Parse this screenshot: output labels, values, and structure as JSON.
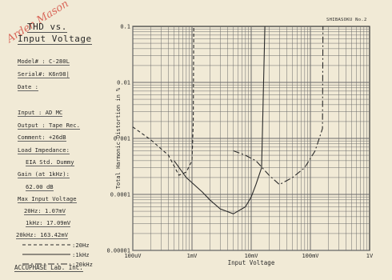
{
  "watermark": "Arden Mason",
  "brand_top_right": "SHIBASOKU No.2",
  "panel": {
    "title_line1": "THD vs.",
    "title_line2": "Input Voltage",
    "model": "Model# : C-280L",
    "serial": "Serial#: K6n98|",
    "date": "Date   :",
    "input": "Input  : AD MC",
    "output": "Output : Tape Rec.",
    "comment": "Comment: +26dB",
    "load_impedance_label": "Load Impedance:",
    "load_impedance_value": "EIA Std. Dummy",
    "gain_label": "Gain (at 1kHz):",
    "gain_value": "62.00  dB",
    "max_input_label": "Max Input Voltage",
    "max_20hz": "20Hz:  1.07mV",
    "max_1khz": "1kHz: 17.09mV",
    "max_20khz": "20kHz: 163.42mV",
    "legend_20hz": ":20Hz",
    "legend_1khz": ":1kHz",
    "legend_20khz": ":20kHz",
    "footer": "ACCUPHASE Lab. Inc."
  },
  "colors": {
    "paper": "#f1ead6",
    "grid": "#6b6b6b",
    "curve": "#2a2a2a",
    "watermark": "#d13a2f"
  },
  "chart_data": {
    "type": "line",
    "title": "",
    "xlabel": "Input Voltage",
    "ylabel": "Total Harmonic Distortion in %",
    "xscale": "log",
    "yscale": "log",
    "xlim": [
      0.0001,
      1
    ],
    "ylim": [
      1e-05,
      0.1
    ],
    "x_ticks": [
      0.0001,
      0.001,
      0.01,
      0.1,
      1
    ],
    "x_tick_labels": [
      "100uV",
      "1mV",
      "10mV",
      "100mV",
      "1V"
    ],
    "y_ticks": [
      1e-05,
      0.0001,
      0.001,
      0.01,
      0.1
    ],
    "y_tick_labels": [
      "0.00001",
      "0.0001",
      "0.001",
      "0.01",
      "0.1"
    ],
    "grid": true,
    "series": [
      {
        "name": "20Hz",
        "dash": "dashed",
        "x": [
          0.0001,
          0.0002,
          0.0004,
          0.0006,
          0.0008,
          0.001,
          0.00105,
          0.00107
        ],
        "y": [
          0.0016,
          0.00095,
          0.0005,
          0.00022,
          0.00025,
          0.0004,
          0.002,
          0.1
        ]
      },
      {
        "name": "1kHz",
        "dash": "solid",
        "x": [
          0.0005,
          0.0008,
          0.0015,
          0.002,
          0.003,
          0.005,
          0.008,
          0.01,
          0.012,
          0.015,
          0.017
        ],
        "y": [
          0.0004,
          0.0002,
          0.00011,
          8e-05,
          5.5e-05,
          4.5e-05,
          6e-05,
          9e-05,
          0.00015,
          0.0003,
          0.1
        ]
      },
      {
        "name": "20kHz",
        "dash": "dash-dot",
        "x": [
          0.005,
          0.008,
          0.012,
          0.02,
          0.03,
          0.05,
          0.08,
          0.12,
          0.16,
          0.163
        ],
        "y": [
          0.0006,
          0.0005,
          0.0004,
          0.00022,
          0.00015,
          0.0002,
          0.0003,
          0.0006,
          0.0015,
          0.1
        ]
      }
    ]
  }
}
